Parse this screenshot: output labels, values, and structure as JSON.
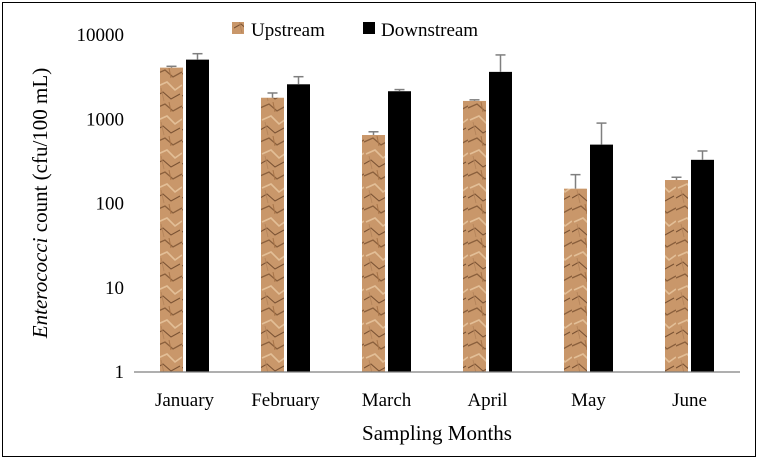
{
  "chart_data": {
    "type": "bar",
    "categories": [
      "January",
      "February",
      "March",
      "April",
      "May",
      "June"
    ],
    "series": [
      {
        "name": "Upstream",
        "values": [
          4100,
          1800,
          650,
          1650,
          150,
          190
        ],
        "error_upper": [
          4250,
          2050,
          710,
          1700,
          220,
          205
        ]
      },
      {
        "name": "Downstream",
        "values": [
          5100,
          2600,
          2150,
          3650,
          500,
          330
        ],
        "error_upper": [
          6000,
          3200,
          2250,
          5800,
          900,
          420
        ]
      }
    ],
    "xlabel": "Sampling Months",
    "ylabel_italic": "Enterococci",
    "ylabel_rest": " count (cfu/100 mL)",
    "yscale": "log",
    "ylim": [
      1,
      10000
    ],
    "yticks": [
      "1",
      "10",
      "100",
      "1000",
      "10000"
    ],
    "legend_position": "top",
    "grid": false,
    "colors": {
      "upstream": "#c9976a",
      "upstream_dark": "#8a5f3c",
      "downstream": "#000000",
      "axis": "#7f7f7f"
    }
  }
}
